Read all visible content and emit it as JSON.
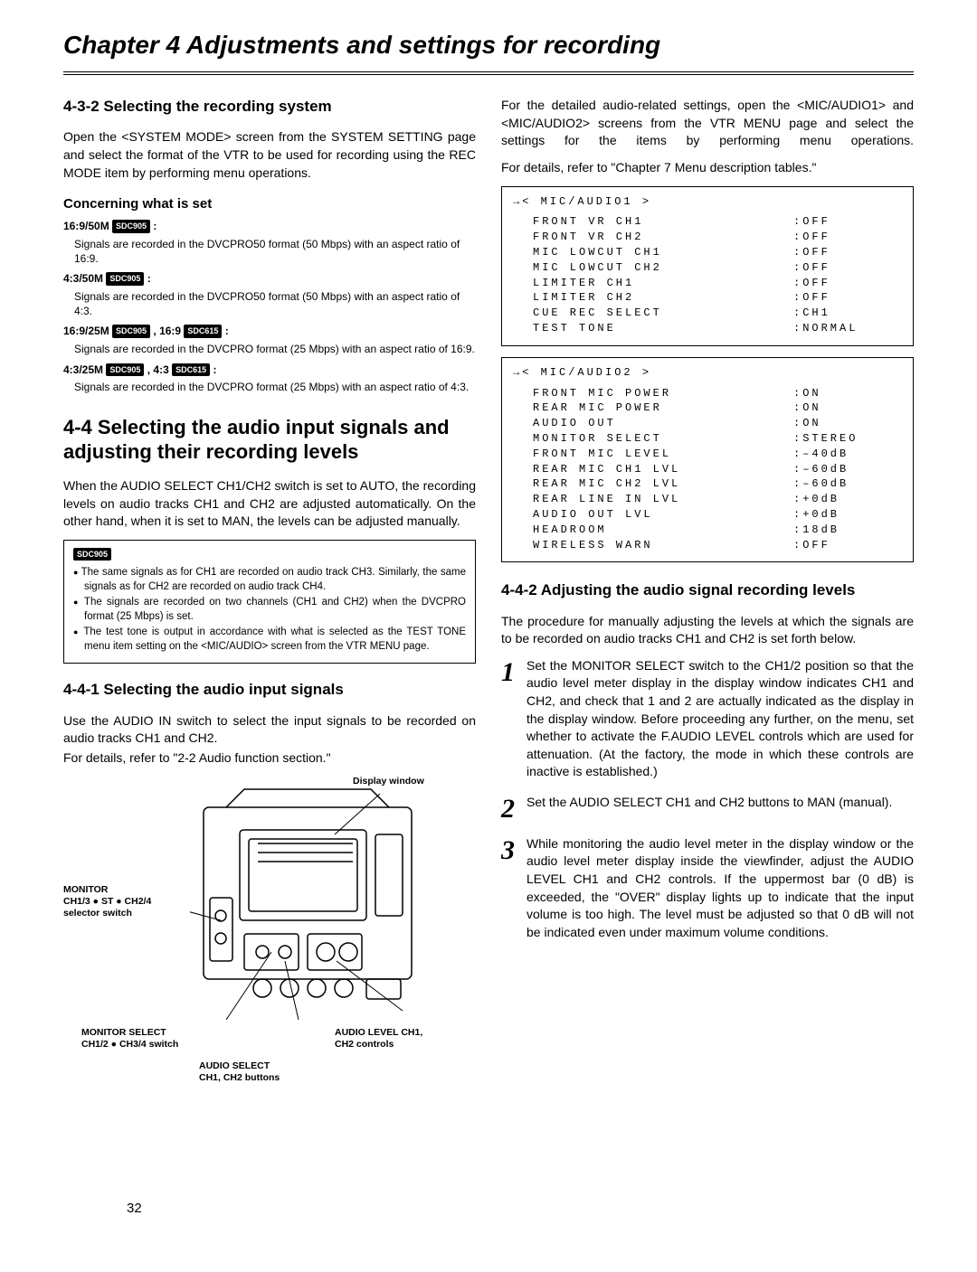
{
  "chapter_title": "Chapter 4  Adjustments and settings for recording",
  "page_number": "32",
  "badges": {
    "sdc905": "SDC905",
    "sdc615": "SDC615"
  },
  "left": {
    "sec432_title": "4-3-2 Selecting the recording system",
    "sec432_body": "Open the <SYSTEM MODE> screen from the SYSTEM SETTING page and select the format of the VTR to be used for recording using the REC MODE item by performing menu operations.",
    "concerning_h": "Concerning what is set",
    "settings": [
      {
        "key": "16:9/50M ",
        "badges": [
          "sdc905"
        ],
        "tail": " :",
        "desc": "Signals are recorded in the DVCPRO50 format (50 Mbps) with an aspect ratio of 16:9."
      },
      {
        "key": "4:3/50M ",
        "badges": [
          "sdc905"
        ],
        "tail": " :",
        "desc": "Signals are recorded in the DVCPRO50 format (50 Mbps) with an aspect ratio of 4:3."
      },
      {
        "key": "16:9/25M ",
        "badges": [
          "sdc905"
        ],
        "mid": " , 16:9 ",
        "badges2": [
          "sdc615"
        ],
        "tail": " :",
        "desc": "Signals are recorded in the DVCPRO format (25 Mbps) with an aspect ratio of 16:9."
      },
      {
        "key": "4:3/25M ",
        "badges": [
          "sdc905"
        ],
        "mid": " , 4:3 ",
        "badges2": [
          "sdc615"
        ],
        "tail": " :",
        "desc": "Signals are recorded in the DVCPRO format (25 Mbps) with an aspect ratio of 4:3."
      }
    ],
    "sec44_title": "4-4 Selecting the audio input signals and adjusting their recording levels",
    "sec44_body": "When the AUDIO SELECT CH1/CH2 switch is set to AUTO, the recording levels on audio tracks CH1 and CH2 are adjusted automatically.  On the other hand, when it is set to MAN, the levels can be adjusted manually.",
    "note_badge": "sdc905",
    "notes": [
      "The same signals as for CH1 are recorded on audio track CH3.  Similarly, the same signals as for CH2 are recorded on audio track CH4.",
      "The signals are recorded on two channels (CH1 and CH2) when the DVCPRO format (25 Mbps) is set.",
      "The test tone is output in accordance with what is selected as the TEST TONE menu item setting on the <MIC/AUDIO> screen from the VTR MENU page."
    ],
    "sec441_title": "4-4-1 Selecting the audio input signals",
    "sec441_body1": "Use the AUDIO IN switch to select the input signals to be recorded on audio tracks CH1 and CH2.",
    "sec441_body2": "For details, refer to \"2-2 Audio function section.\"",
    "callouts": {
      "display_window": "Display window",
      "monitor_switch": "MONITOR\nCH1/3 ● ST ● CH2/4\nselector switch",
      "monitor_select": "MONITOR SELECT\nCH1/2 ● CH3/4 switch",
      "audio_select": "AUDIO SELECT\nCH1, CH2 buttons",
      "audio_level": "AUDIO LEVEL CH1,\nCH2 controls"
    }
  },
  "right": {
    "intro1": "For the detailed audio-related settings, open the <MIC/AUDIO1> and <MIC/AUDIO2> screens from the VTR MENU page and select the settings for the items by performing menu operations.",
    "intro2": "For details, refer to \"Chapter 7 Menu description tables.\"",
    "menu1": {
      "title": "→< MIC/AUDIO1 >",
      "rows": [
        {
          "l": "FRONT VR CH1",
          "v": ":OFF"
        },
        {
          "l": "FRONT VR CH2",
          "v": ":OFF"
        },
        {
          "l": "MIC LOWCUT CH1",
          "v": ":OFF"
        },
        {
          "l": "MIC LOWCUT CH2",
          "v": ":OFF"
        },
        {
          "l": "LIMITER CH1",
          "v": ":OFF"
        },
        {
          "l": "LIMITER CH2",
          "v": ":OFF"
        },
        {
          "l": "CUE REC SELECT",
          "v": ":CH1"
        },
        {
          "l": "TEST TONE",
          "v": ":NORMAL"
        }
      ]
    },
    "menu2": {
      "title": "→< MIC/AUDIO2 >",
      "rows": [
        {
          "l": "FRONT MIC POWER",
          "v": ":ON"
        },
        {
          "l": "REAR MIC POWER",
          "v": ":ON"
        },
        {
          "l": "AUDIO OUT",
          "v": ":ON"
        },
        {
          "l": "MONITOR SELECT",
          "v": ":STEREO"
        },
        {
          "l": "FRONT MIC LEVEL",
          "v": ":–40dB"
        },
        {
          "l": "REAR MIC CH1 LVL",
          "v": ":–60dB"
        },
        {
          "l": "REAR MIC CH2 LVL",
          "v": ":–60dB"
        },
        {
          "l": "REAR LINE IN LVL",
          "v": ":+0dB"
        },
        {
          "l": "AUDIO OUT LVL",
          "v": ":+0dB"
        },
        {
          "l": "HEADROOM",
          "v": ":18dB"
        },
        {
          "l": "WIRELESS WARN",
          "v": ":OFF"
        }
      ]
    },
    "sec442_title": "4-4-2 Adjusting the audio signal recording levels",
    "sec442_body": "The procedure for manually adjusting the levels at which the signals are to be recorded on audio tracks CH1 and CH2 is set forth below.",
    "steps": [
      {
        "n": "1",
        "t": "Set the MONITOR SELECT switch to the CH1/2 position so that the audio level meter display in the display window indicates CH1 and CH2, and check that 1 and 2 are actually indicated as the display in the display window.  Before proceeding any further, on the menu, set whether to activate the F.AUDIO LEVEL controls which are used for attenuation.  (At the factory, the mode in which these controls are inactive is established.)"
      },
      {
        "n": "2",
        "t": "Set the AUDIO SELECT CH1 and CH2 buttons to MAN (manual)."
      },
      {
        "n": "3",
        "t": "While monitoring the audio level meter in the display window or the audio level meter display inside the viewfinder, adjust the AUDIO LEVEL CH1 and CH2 controls.  If the uppermost bar (0 dB) is exceeded, the \"OVER\" display lights up to indicate that the input volume is too high.  The level must be adjusted so that 0 dB will not be indicated even under maximum volume conditions."
      }
    ]
  }
}
